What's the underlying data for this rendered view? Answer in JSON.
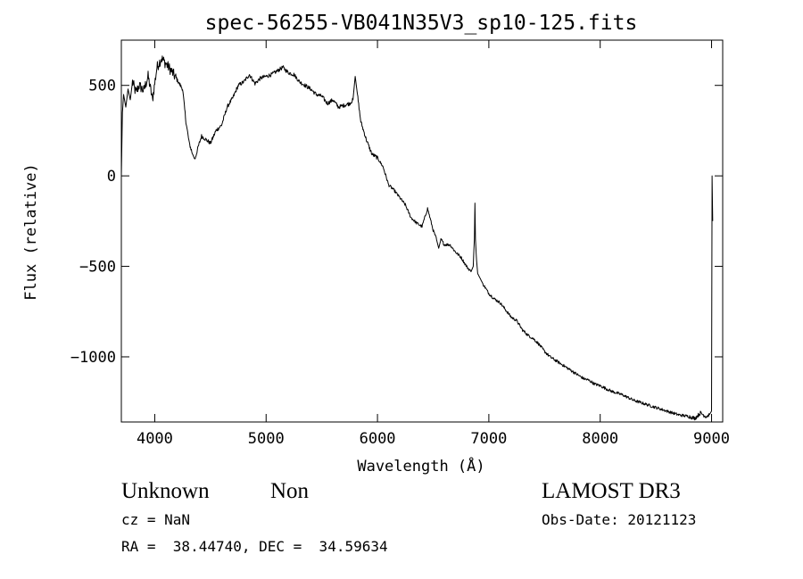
{
  "chart_data": {
    "type": "line",
    "title": "spec-56255-VB041N35V3_sp10-125.fits",
    "xlabel": "Wavelength (Å)",
    "ylabel": "Flux (relative)",
    "xlim": [
      3700,
      9100
    ],
    "ylim": [
      -1360,
      750
    ],
    "x_ticks": [
      4000,
      5000,
      6000,
      7000,
      8000,
      9000
    ],
    "x_tick_labels": [
      "4000",
      "5000",
      "6000",
      "7000",
      "8000",
      "9000"
    ],
    "y_ticks": [
      500,
      0,
      -500,
      -1000
    ],
    "y_tick_labels": [
      "500",
      "0",
      "−500",
      "−1000"
    ],
    "series": [
      {
        "name": "flux",
        "x": [
          3700,
          3710,
          3720,
          3740,
          3760,
          3780,
          3800,
          3830,
          3860,
          3900,
          3940,
          3980,
          4020,
          4060,
          4100,
          4150,
          4200,
          4250,
          4280,
          4310,
          4340,
          4360,
          4390,
          4420,
          4460,
          4500,
          4550,
          4600,
          4650,
          4700,
          4750,
          4800,
          4850,
          4900,
          4950,
          5000,
          5050,
          5100,
          5150,
          5200,
          5250,
          5300,
          5350,
          5400,
          5450,
          5500,
          5550,
          5600,
          5650,
          5700,
          5750,
          5780,
          5800,
          5820,
          5850,
          5900,
          5950,
          6000,
          6050,
          6100,
          6150,
          6200,
          6250,
          6300,
          6350,
          6400,
          6450,
          6500,
          6530,
          6550,
          6570,
          6600,
          6650,
          6700,
          6750,
          6800,
          6840,
          6860,
          6870,
          6875,
          6880,
          6890,
          6900,
          6950,
          7000,
          7050,
          7100,
          7150,
          7200,
          7250,
          7300,
          7350,
          7400,
          7450,
          7500,
          7550,
          7600,
          7650,
          7700,
          7750,
          7800,
          7850,
          7900,
          7950,
          8000,
          8100,
          8200,
          8300,
          8400,
          8500,
          8600,
          8700,
          8800,
          8850,
          8900,
          8950,
          8980,
          9000,
          9005,
          9010
        ],
        "values": [
          0,
          350,
          450,
          380,
          480,
          420,
          520,
          460,
          500,
          470,
          550,
          420,
          600,
          650,
          620,
          580,
          530,
          480,
          300,
          180,
          120,
          90,
          160,
          220,
          200,
          180,
          250,
          280,
          380,
          430,
          500,
          520,
          560,
          510,
          540,
          550,
          560,
          580,
          600,
          570,
          560,
          520,
          500,
          480,
          450,
          440,
          400,
          420,
          380,
          390,
          400,
          420,
          550,
          450,
          300,
          200,
          120,
          100,
          50,
          -50,
          -80,
          -120,
          -160,
          -230,
          -260,
          -280,
          -180,
          -300,
          -350,
          -400,
          -350,
          -380,
          -380,
          -420,
          -450,
          -500,
          -530,
          -500,
          -350,
          -150,
          -350,
          -470,
          -540,
          -600,
          -650,
          -680,
          -700,
          -740,
          -780,
          -800,
          -850,
          -880,
          -900,
          -930,
          -970,
          -1000,
          -1020,
          -1040,
          -1060,
          -1080,
          -1100,
          -1120,
          -1130,
          -1150,
          -1160,
          -1190,
          -1210,
          -1240,
          -1260,
          -1280,
          -1300,
          -1320,
          -1330,
          -1340,
          -1310,
          -1330,
          -1320,
          -1300,
          0,
          -250
        ]
      }
    ]
  },
  "footer": {
    "object_class": "Unknown",
    "subclass": "Non",
    "survey": "LAMOST DR3",
    "cz": "cz = NaN",
    "obs_date": "Obs-Date: 20121123",
    "coords": "RA =  38.44740, DEC =  34.59634"
  }
}
